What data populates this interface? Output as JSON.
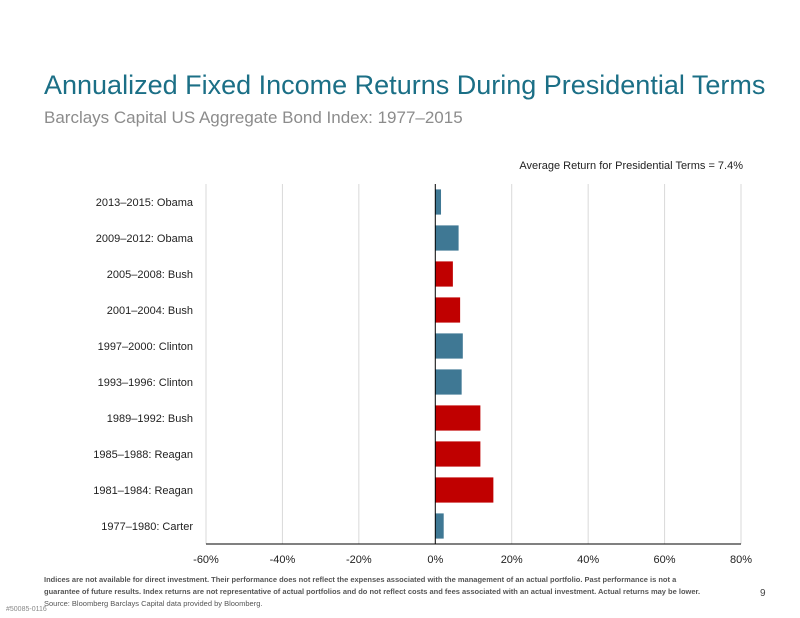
{
  "title": "Annualized Fixed Income Returns During Presidential Terms",
  "subtitle": "Barclays Capital US Aggregate Bond Index: 1977–2015",
  "average_note": "Average Return for Presidential Terms = 7.4%",
  "footnote": {
    "bold_text": "Indices are not available for direct investment. Their performance does not reflect the expenses associated with the management of an actual portfolio. Past performance is not a guarantee of future results. Index returns are not representative of actual portfolios and do not reflect costs and fees associated with an actual investment. Actual returns may be lower.",
    "source_text": "Source: Bloomberg Barclays Capital data provided by Bloomberg."
  },
  "page_number": "9",
  "doc_id": "#50085-0116",
  "colors": {
    "democrat": "#3f7894",
    "republican": "#c00000",
    "title": "#1b6f86",
    "grid": "#d9d9d9"
  },
  "chart_data": {
    "type": "bar",
    "orientation": "horizontal",
    "categories": [
      "2013–2015: Obama",
      "2009–2012: Obama",
      "2005–2008: Bush",
      "2001–2004: Bush",
      "1997–2000: Clinton",
      "1993–1996: Clinton",
      "1989–1992: Bush",
      "1985–1988: Reagan",
      "1981–1984: Reagan",
      "1977–1980: Carter"
    ],
    "values": [
      1.5,
      6.1,
      4.6,
      6.5,
      7.2,
      6.9,
      11.8,
      11.8,
      15.2,
      2.2
    ],
    "party": [
      "D",
      "D",
      "R",
      "R",
      "D",
      "D",
      "R",
      "R",
      "R",
      "D"
    ],
    "xlim": [
      -60,
      80
    ],
    "xticks": [
      -60,
      -40,
      -20,
      0,
      20,
      40,
      60,
      80
    ],
    "xtick_labels": [
      "-60%",
      "-40%",
      "-20%",
      "0%",
      "20%",
      "40%",
      "60%",
      "80%"
    ],
    "grid": "vertical"
  }
}
